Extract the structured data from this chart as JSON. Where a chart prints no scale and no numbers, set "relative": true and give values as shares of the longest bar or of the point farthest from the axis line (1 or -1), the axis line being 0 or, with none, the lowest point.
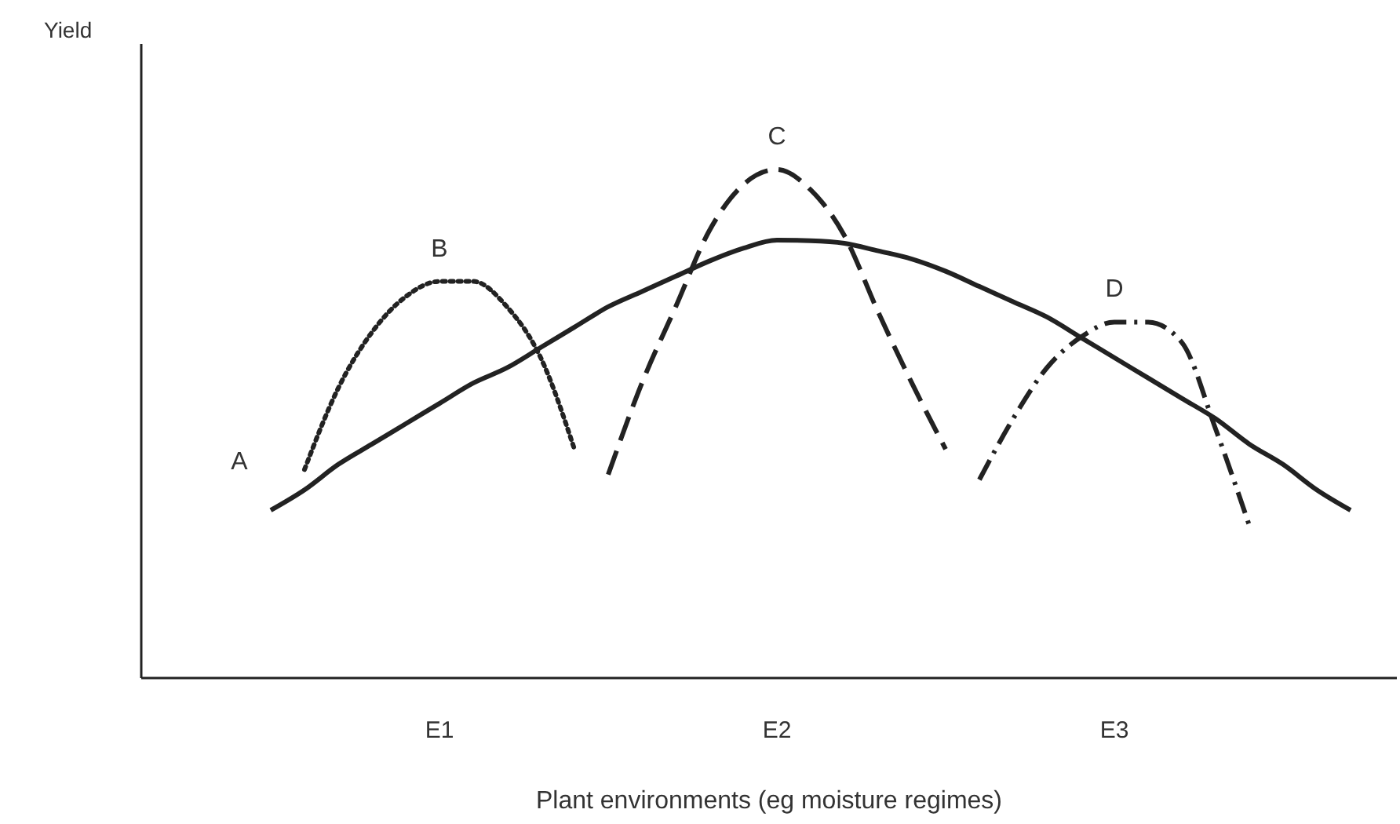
{
  "chart_data": {
    "type": "line",
    "relative": true,
    "xlabel": "Plant environments (eg moisture regimes)",
    "annotations": [
      "Yield"
    ],
    "categories": [
      null,
      null,
      null,
      null,
      null,
      null,
      "E1",
      null,
      null,
      null,
      null,
      null,
      null,
      null,
      null,
      null,
      "E2",
      null,
      null,
      null,
      null,
      null,
      null,
      null,
      null,
      null,
      "E3",
      null,
      null,
      null,
      null,
      null,
      null,
      null,
      null
    ],
    "grid": false,
    "legend": false,
    "marker": "none",
    "series": [
      {
        "name": "A",
        "color": "#222222",
        "line_style": "solid",
        "values": [
          null,
          0.33,
          0.37,
          0.42,
          0.46,
          0.5,
          0.54,
          0.58,
          0.61,
          0.65,
          0.69,
          0.73,
          0.76,
          0.79,
          0.82,
          0.845,
          0.861,
          0.86,
          0.855,
          0.84,
          0.824,
          0.8,
          0.77,
          0.74,
          0.71,
          0.67,
          0.63,
          0.59,
          0.55,
          0.51,
          0.46,
          0.42,
          0.37,
          0.33,
          null
        ]
      },
      {
        "name": "B",
        "color": "#222222",
        "line_style": "dotted",
        "values": [
          null,
          null,
          0.41,
          0.57,
          0.68,
          0.75,
          0.78,
          0.78,
          0.73,
          0.63,
          0.45,
          null,
          null,
          null,
          null,
          null,
          null,
          null,
          null,
          null,
          null,
          null,
          null,
          null,
          null,
          null,
          null,
          null,
          null,
          null,
          null,
          null,
          null,
          null,
          null
        ]
      },
      {
        "name": "C",
        "color": "#222222",
        "line_style": "dashed",
        "values": [
          null,
          null,
          null,
          null,
          null,
          null,
          null,
          null,
          null,
          null,
          null,
          0.4,
          0.58,
          0.73,
          0.88,
          0.97,
          1.0,
          0.96,
          0.87,
          0.72,
          0.58,
          0.45,
          null,
          null,
          null,
          null,
          null,
          null,
          null,
          null,
          null,
          null,
          null,
          null,
          null
        ]
      },
      {
        "name": "D",
        "color": "#222222",
        "line_style": "dashdot",
        "values": [
          null,
          null,
          null,
          null,
          null,
          null,
          null,
          null,
          null,
          null,
          null,
          null,
          null,
          null,
          null,
          null,
          null,
          null,
          null,
          null,
          null,
          null,
          0.39,
          0.51,
          0.61,
          0.67,
          0.7,
          0.7,
          0.66,
          0.49,
          0.3,
          null,
          null,
          null,
          null
        ]
      }
    ]
  }
}
